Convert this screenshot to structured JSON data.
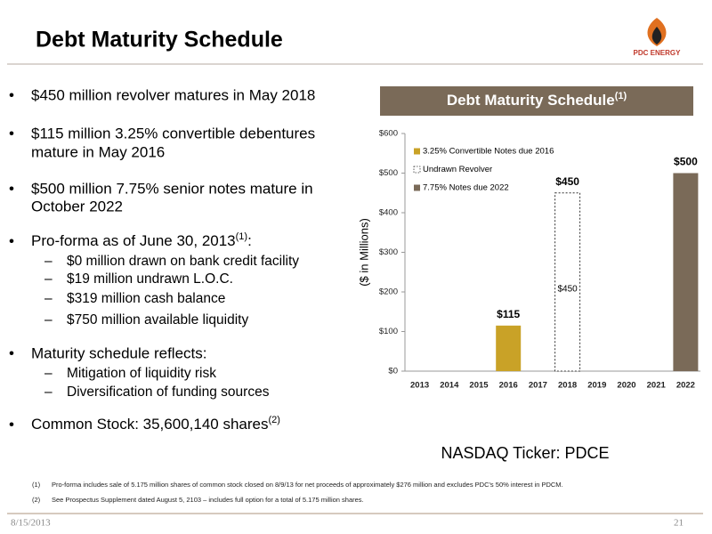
{
  "header": {
    "title": "Debt Maturity Schedule",
    "logo": "PDC ENERGY"
  },
  "bullets": [
    {
      "lines": [
        "$450 million revolver matures in May 2018"
      ]
    },
    {
      "lines": [
        "$115 million 3.25% convertible debentures",
        "mature in May 2016"
      ]
    },
    {
      "lines": [
        "$500 million 7.75% senior notes mature in",
        "October 2022"
      ]
    },
    {
      "text": "Pro-forma as of June 30, 2013",
      "sup": "(1)",
      "after": ":",
      "subs": [
        "$0 million drawn on bank credit facility",
        "$19 million undrawn L.O.C.",
        "$319 million cash balance",
        "$750 million available liquidity"
      ]
    },
    {
      "text": "Maturity schedule reflects:",
      "subs": [
        "Mitigation of liquidity risk",
        "Diversification of funding sources"
      ]
    },
    {
      "text": "Common Stock: 35,600,140 shares",
      "sup": "(2)"
    }
  ],
  "chart_data": {
    "type": "bar",
    "title": "Debt Maturity Schedule",
    "title_sup": "(1)",
    "y_label": "($ in Millions)",
    "categories": [
      "2013",
      "2014",
      "2015",
      "2016",
      "2017",
      "2018",
      "2019",
      "2020",
      "2021",
      "2022"
    ],
    "series": [
      {
        "name": "3.25% Convertible Notes due 2016",
        "color": "#c9a227",
        "border": "solid",
        "values": [
          null,
          null,
          null,
          115,
          null,
          null,
          null,
          null,
          null,
          null
        ],
        "value_labels": [
          null,
          null,
          null,
          "$115",
          null,
          null,
          null,
          null,
          null,
          null
        ]
      },
      {
        "name": "Undrawn Revolver",
        "color": "#ffffff",
        "border": "dotted",
        "values": [
          null,
          null,
          null,
          null,
          null,
          450,
          null,
          null,
          null,
          null
        ],
        "value_labels": [
          null,
          null,
          null,
          null,
          null,
          "$450",
          null,
          null,
          null,
          null
        ],
        "inner_value_labels": [
          null,
          null,
          null,
          null,
          null,
          "$450",
          null,
          null,
          null,
          null
        ]
      },
      {
        "name": "7.75% Notes due 2022",
        "color": "#7a6a58",
        "border": "solid",
        "values": [
          null,
          null,
          null,
          null,
          null,
          null,
          null,
          null,
          null,
          500
        ],
        "value_labels": [
          null,
          null,
          null,
          null,
          null,
          null,
          null,
          null,
          null,
          "$500"
        ]
      }
    ],
    "ylim": [
      0,
      600
    ],
    "yticks": [
      {
        "value": 0,
        "label": "$0"
      },
      {
        "value": 100,
        "label": "$100"
      },
      {
        "value": 200,
        "label": "$200"
      },
      {
        "value": 300,
        "label": "$300"
      },
      {
        "value": 400,
        "label": "$400"
      },
      {
        "value": 500,
        "label": "$500"
      },
      {
        "value": 600,
        "label": "$600"
      }
    ],
    "grid": false,
    "legend": "upper left"
  },
  "ticker": "NASDAQ Ticker: PDCE",
  "footnotes": [
    {
      "number": "(1)",
      "text": "Pro-forma includes sale of 5.175 million shares of common stock closed on 8/9/13 for net proceeds of approximately $276 million and excludes PDC's 50% interest in PDCM."
    },
    {
      "number": "(2)",
      "text": "See Prospectus Supplement dated August 5, 2103 – includes full option for a total of 5.175 million shares."
    }
  ],
  "footer": {
    "date": "8/15/2013",
    "page": "21"
  }
}
